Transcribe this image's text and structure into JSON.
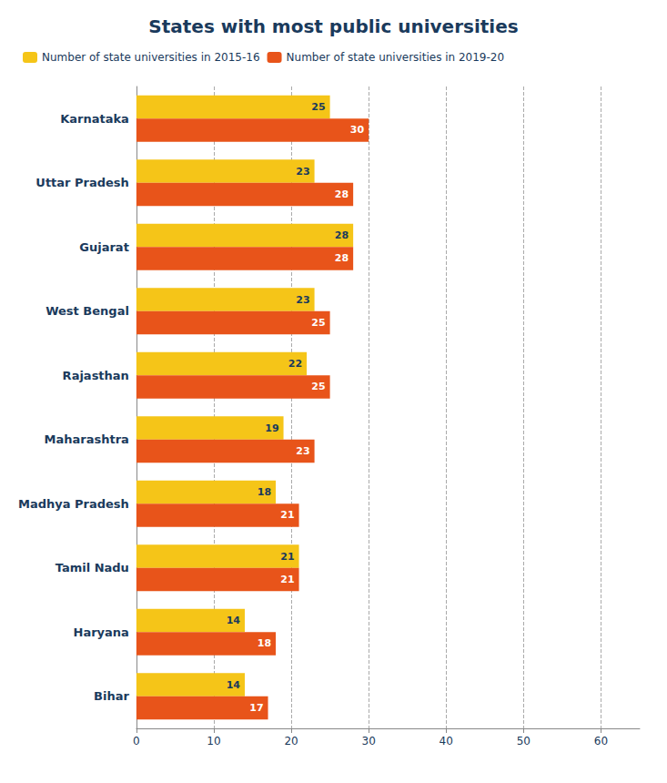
{
  "chart_data": {
    "type": "bar",
    "orientation": "horizontal",
    "title": "States with most public universities",
    "categories": [
      "Karnataka",
      "Uttar Pradesh",
      "Gujarat",
      "West Bengal",
      "Rajasthan",
      "Maharashtra",
      "Madhya Pradesh",
      "Tamil Nadu",
      "Haryana",
      "Bihar"
    ],
    "series": [
      {
        "name": "Number of state universities in 2015-16",
        "color": "#F5C518",
        "values": [
          25,
          23,
          28,
          23,
          22,
          19,
          18,
          21,
          14,
          14
        ]
      },
      {
        "name": "Number of state universities in 2019-20",
        "color": "#E8541A",
        "values": [
          30,
          28,
          28,
          25,
          25,
          23,
          21,
          21,
          18,
          17
        ]
      }
    ],
    "xlim": [
      0,
      65
    ],
    "xticks": [
      0,
      10,
      20,
      30,
      40,
      50,
      60
    ],
    "grid": true,
    "legend": "upper left",
    "data_labels": true
  }
}
